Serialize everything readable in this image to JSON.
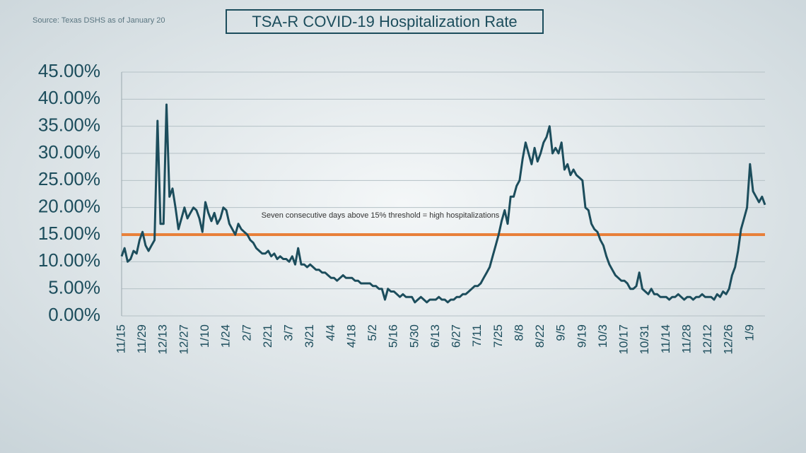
{
  "chart_data": {
    "type": "line",
    "title": "TSA-R COVID-19 Hospitalization Rate",
    "source": "Source: Texas DSHS as of January 20",
    "annotation": "Seven consecutive days above 15% threshold = high hospitalizations",
    "threshold": 15,
    "threshold_color": "#e8803a",
    "color": "#1c4d5c",
    "ylim": [
      0,
      45
    ],
    "yticks": [
      {
        "value": 0,
        "label": "0.00%"
      },
      {
        "value": 5,
        "label": "5.00%"
      },
      {
        "value": 10,
        "label": "10.00%"
      },
      {
        "value": 15,
        "label": "15.00%"
      },
      {
        "value": 20,
        "label": "20.00%"
      },
      {
        "value": 25,
        "label": "25.00%"
      },
      {
        "value": 30,
        "label": "30.00%"
      },
      {
        "value": 35,
        "label": "35.00%"
      },
      {
        "value": 40,
        "label": "40.00%"
      },
      {
        "value": 45,
        "label": "45.00%"
      }
    ],
    "grid": true,
    "categories": [
      "11/15",
      null,
      null,
      null,
      null,
      null,
      null,
      "11/29",
      null,
      null,
      null,
      null,
      null,
      null,
      "12/13",
      null,
      null,
      null,
      null,
      null,
      null,
      "12/27",
      null,
      null,
      null,
      null,
      null,
      null,
      "1/10",
      null,
      null,
      null,
      null,
      null,
      null,
      "1/24",
      null,
      null,
      null,
      null,
      null,
      null,
      "2/7",
      null,
      null,
      null,
      null,
      null,
      null,
      "2/21",
      null,
      null,
      null,
      null,
      null,
      null,
      "3/7",
      null,
      null,
      null,
      null,
      null,
      null,
      "3/21",
      null,
      null,
      null,
      null,
      null,
      null,
      "4/4",
      null,
      null,
      null,
      null,
      null,
      null,
      "4/18",
      null,
      null,
      null,
      null,
      null,
      null,
      "5/2",
      null,
      null,
      null,
      null,
      null,
      null,
      "5/16",
      null,
      null,
      null,
      null,
      null,
      null,
      "5/30",
      null,
      null,
      null,
      null,
      null,
      null,
      "6/13",
      null,
      null,
      null,
      null,
      null,
      null,
      "6/27",
      null,
      null,
      null,
      null,
      null,
      null,
      "7/11",
      null,
      null,
      null,
      null,
      null,
      null,
      "7/25",
      null,
      null,
      null,
      null,
      null,
      null,
      "8/8",
      null,
      null,
      null,
      null,
      null,
      null,
      "8/22",
      null,
      null,
      null,
      null,
      null,
      null,
      "9/5",
      null,
      null,
      null,
      null,
      null,
      null,
      "9/19",
      null,
      null,
      null,
      null,
      null,
      null,
      "10/3",
      null,
      null,
      null,
      null,
      null,
      null,
      "10/17",
      null,
      null,
      null,
      null,
      null,
      null,
      "10/31",
      null,
      null,
      null,
      null,
      null,
      null,
      "11/14",
      null,
      null,
      null,
      null,
      null,
      null,
      "11/28",
      null,
      null,
      null,
      null,
      null,
      null,
      "12/12",
      null,
      null,
      null,
      null,
      null,
      null,
      "12/26",
      null,
      null,
      null,
      null,
      null,
      null,
      "1/9",
      null,
      null,
      null,
      null,
      null
    ],
    "values": [
      11,
      12.5,
      10,
      10.5,
      12,
      11.5,
      14,
      15.5,
      13,
      12,
      13,
      14,
      36,
      17,
      17,
      39,
      22,
      23.5,
      20,
      16,
      18,
      20,
      18,
      19,
      20,
      19.5,
      18,
      15.5,
      21,
      19,
      17.5,
      19,
      17,
      18,
      20,
      19.5,
      17,
      16,
      15,
      17,
      16,
      15.5,
      15,
      14,
      13.5,
      12.5,
      12,
      11.5,
      11.5,
      12,
      11,
      11.5,
      10.5,
      11,
      10.5,
      10.5,
      10,
      11,
      9.5,
      12.5,
      9.5,
      9.5,
      9,
      9.5,
      9,
      8.5,
      8.5,
      8,
      8,
      7.5,
      7,
      7,
      6.5,
      7,
      7.5,
      7,
      7,
      7,
      6.5,
      6.5,
      6,
      6,
      6,
      6,
      5.5,
      5.5,
      5,
      5,
      3,
      5,
      4.5,
      4.5,
      4,
      3.5,
      4,
      3.5,
      3.5,
      3.5,
      2.5,
      3,
      3.5,
      3,
      2.5,
      3,
      3,
      3,
      3.5,
      3,
      3,
      2.5,
      3,
      3,
      3.5,
      3.5,
      4,
      4,
      4.5,
      5,
      5.5,
      5.5,
      6,
      7,
      8,
      9,
      11,
      13,
      15,
      17.5,
      19.5,
      17,
      22,
      22,
      24,
      25,
      29,
      32,
      30,
      28,
      31,
      28.5,
      30,
      32,
      33,
      35,
      30,
      31,
      30,
      32,
      27,
      28,
      26,
      27,
      26,
      25.5,
      25,
      20,
      19.5,
      17,
      16,
      15.5,
      14,
      13,
      11,
      9.5,
      8.5,
      7.5,
      7,
      6.5,
      6.5,
      6,
      5,
      5,
      5.5,
      8,
      5,
      4.5,
      4,
      5,
      4,
      4,
      3.5,
      3.5,
      3.5,
      3,
      3.5,
      3.5,
      4,
      3.5,
      3,
      3.5,
      3.5,
      3,
      3.5,
      3.5,
      4,
      3.5,
      3.5,
      3.5,
      3,
      4,
      3.5,
      4.5,
      4,
      5,
      7.5,
      9,
      12,
      16,
      18,
      20,
      28,
      23,
      22,
      21,
      22,
      20.5
    ]
  }
}
